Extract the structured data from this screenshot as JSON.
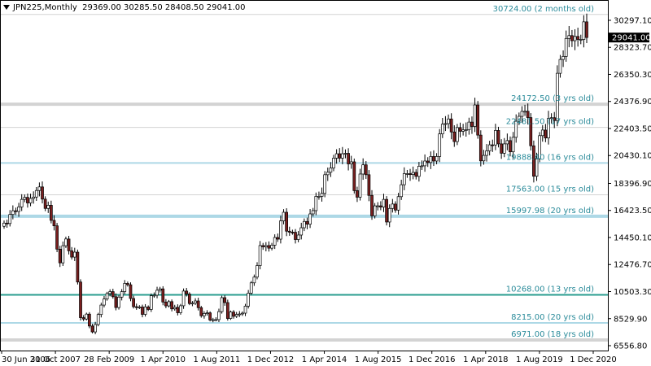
{
  "header": {
    "symbol": "JPN225,Monthly",
    "ohlc": "29369.00 30285.50 28408.50 29041.00"
  },
  "colors": {
    "background": "#ffffff",
    "frame": "#000000",
    "bull_body": "#ffffff",
    "bear_body": "#7a1f1f",
    "wick": "#000000",
    "level_gray": "#d3d3d3",
    "level_blue": "#add8e6",
    "level_teal": "#2a9d8f",
    "level_text": "#2a8b9a"
  },
  "chart_data": {
    "type": "candlestick",
    "title": "JPN225,Monthly",
    "ylim": [
      6556.8,
      31245.0
    ],
    "y_ticks": [
      "30297.10",
      "28323.70",
      "26350.30",
      "24376.90",
      "22403.50",
      "20430.10",
      "18396.90",
      "16423.50",
      "14450.10",
      "12476.70",
      "10503.30",
      "8529.90",
      "6556.80"
    ],
    "x_ticks": [
      "30 Jun 2006",
      "31 Oct 2007",
      "28 Feb 2009",
      "1 Apr 2010",
      "1 Aug 2011",
      "1 Dec 2012",
      "1 Apr 2014",
      "1 Aug 2015",
      "1 Dec 2016",
      "1 Apr 2018",
      "1 Aug 2019",
      "1 Dec 2020"
    ],
    "current_price": "29041.00",
    "levels": [
      {
        "price": 30724.0,
        "label": "30724.00  (2 months old)",
        "style": "gray"
      },
      {
        "price": 24172.5,
        "label": "24172.50  (3 yrs old)",
        "style": "gray-thick"
      },
      {
        "price": 22481.5,
        "label": "22481.50  (17 yrs old)",
        "style": "gray"
      },
      {
        "price": 19888.4,
        "label": "19888.40  (16 yrs old)",
        "style": "blue"
      },
      {
        "price": 17563.0,
        "label": "17563.00  (15 yrs old)",
        "style": "gray"
      },
      {
        "price": 15997.98,
        "label": "15997.98  (20 yrs old)",
        "style": "blue-thick"
      },
      {
        "price": 10268.0,
        "label": "10268.00  (13 yrs old)",
        "style": "teal"
      },
      {
        "price": 8215.0,
        "label": "8215.00  (20 yrs old)",
        "style": "blue"
      },
      {
        "price": 6971.0,
        "label": "6971.00  (18 yrs old)",
        "style": "gray-thick"
      }
    ],
    "start_month": "2006-06",
    "closes": [
      15500,
      15470,
      16130,
      16400,
      16350,
      16680,
      17230,
      17380,
      16970,
      17300,
      17400,
      17880,
      18140,
      17250,
      16570,
      16800,
      15700,
      15300,
      13600,
      12600,
      13850,
      14340,
      13480,
      13020,
      13380,
      11200,
      8600,
      8500,
      8860,
      7990,
      7560,
      8100,
      8830,
      9520,
      9960,
      10360,
      10500,
      10130,
      9340,
      10100,
      10500,
      11100,
      11000,
      10000,
      9400,
      9380,
      9380,
      8840,
      9380,
      9200,
      10200,
      10240,
      10600,
      10700,
      9740,
      9460,
      9770,
      9240,
      9350,
      8960,
      9470,
      10540,
      10330,
      9630,
      9660,
      9820,
      9330,
      8740,
      8910,
      8950,
      8430,
      8450,
      8460,
      9040,
      10060,
      9700,
      8540,
      9010,
      8700,
      8840,
      8870,
      8930,
      9440,
      10390,
      11140,
      11560,
      12400,
      13860,
      13770,
      13860,
      13670,
      13890,
      14450,
      14330,
      15660,
      16290,
      14910,
      14840,
      14830,
      14300,
      14630,
      15160,
      15620,
      15420,
      16170,
      16410,
      17450,
      17450,
      17670,
      19030,
      19210,
      19520,
      20240,
      20560,
      20240,
      20560,
      20590,
      19820,
      19970,
      17870,
      17390,
      19080,
      19750,
      19030,
      17520,
      16030,
      16760,
      16760,
      16670,
      17230,
      15580,
      16570,
      16890,
      16450,
      17430,
      18300,
      19110,
      19110,
      19040,
      19200,
      18910,
      19650,
      19680,
      20030,
      19920,
      20360,
      20030,
      20360,
      22010,
      22720,
      22760,
      23100,
      22150,
      21450,
      22470,
      22200,
      22300,
      22310,
      22870,
      22550,
      24120,
      21920,
      20040,
      20440,
      20770,
      21210,
      21200,
      22260,
      21280,
      20600,
      21280,
      21520,
      20700,
      21760,
      22930,
      23290,
      23650,
      23660,
      23200,
      21140,
      18920,
      20190,
      21880,
      22290,
      21710,
      23140,
      23190,
      22980,
      26430,
      27440,
      27660,
      28970,
      29180,
      28810,
      29120,
      28900,
      28900,
      30185,
      29041
    ]
  }
}
